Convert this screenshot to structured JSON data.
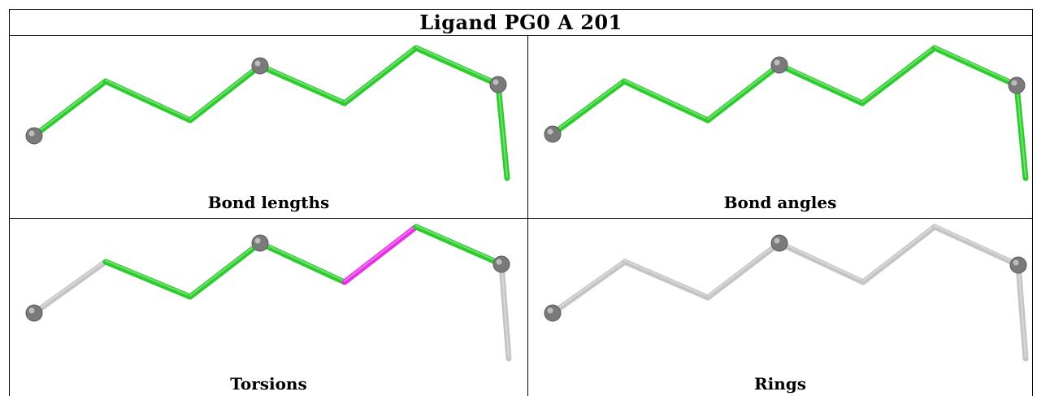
{
  "title": "Ligand PG0 A 201",
  "panels": [
    {
      "caption": "Bond lengths",
      "bond_colors": [
        "green",
        "green",
        "green",
        "green",
        "green",
        "green",
        "green"
      ]
    },
    {
      "caption": "Bond angles",
      "bond_colors": [
        "green",
        "green",
        "green",
        "green",
        "green",
        "green",
        "green"
      ]
    },
    {
      "caption": "Torsions",
      "bond_colors": [
        "grey",
        "green",
        "green",
        "green",
        "magenta",
        "green",
        "grey"
      ]
    },
    {
      "caption": "Rings",
      "bond_colors": [
        "grey",
        "grey",
        "grey",
        "grey",
        "grey",
        "grey",
        "grey"
      ]
    }
  ],
  "colors": {
    "green": "#2dcc2d",
    "magenta": "#e62ee6",
    "grey": "#c4c4c4",
    "atom": "#7a7a7a"
  },
  "highlighted_atoms": [
    0,
    3,
    6
  ]
}
